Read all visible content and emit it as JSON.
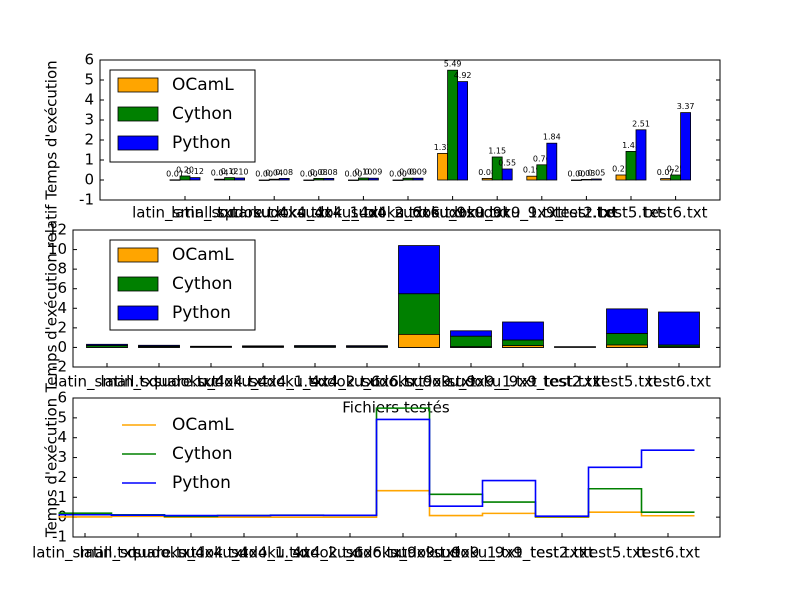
{
  "chart_data": [
    {
      "type": "bar",
      "y_label": "Temps d'exécution",
      "categories": [
        "latin_small.txt",
        "latin_square.txt",
        "sudoku_4x4.txt",
        "sudoku_4x4_1.txt",
        "sudoku_4x4_2.txt",
        "sudoku_6x6.txt",
        "sudoku_9x9.txt",
        "sudoku_9x9_1.txt",
        "sudoku_9x9_test.txt",
        "test2.txt",
        "test5.txt",
        "test6.txt"
      ],
      "series": [
        {
          "name": "OCamL",
          "color": "#ffa500",
          "values": [
            0.01,
            0.04,
            0.0,
            0.0,
            0.0,
            0.0,
            1.33,
            0.08,
            0.19,
            0.0,
            0.25,
            0.07
          ],
          "value_labels": [
            "0.01",
            "0.04",
            "0.00",
            "0.00",
            "0.00",
            "0.00",
            "1.33",
            "0.08",
            "0.19",
            "0.00",
            "0.25",
            "0.07"
          ]
        },
        {
          "name": "Cython",
          "color": "#008000",
          "values": [
            0.2,
            0.12,
            0.04,
            0.08,
            0.1,
            0.09,
            5.49,
            1.15,
            0.76,
            0.03,
            1.43,
            0.25
          ],
          "value_labels": [
            "0.20",
            "0.12",
            "0.04",
            "0.08",
            "0.10",
            "0.09",
            "5.49",
            "1.15",
            "0.76",
            "0.03",
            "1.43",
            "0.25"
          ]
        },
        {
          "name": "Python",
          "color": "#0000ff",
          "values": [
            0.12,
            0.1,
            0.08,
            0.08,
            0.09,
            0.09,
            4.92,
            0.55,
            1.84,
            0.05,
            2.51,
            3.37
          ],
          "value_labels": [
            "0.12",
            "0.10",
            "0.08",
            "0.08",
            "0.09",
            "0.09",
            "4.92",
            "0.55",
            "1.84",
            "0.05",
            "2.51",
            "3.37"
          ]
        }
      ],
      "ylim": [
        -1,
        6
      ],
      "yticks": [
        -1,
        0,
        1,
        2,
        3,
        4,
        5,
        6
      ],
      "legend": "upper left",
      "legend_frame": true
    },
    {
      "type": "stacked_bar",
      "y_label": "Temps d'exécution relatif",
      "x_label": "Fichiers testés",
      "categories": [
        "latin_small.txt",
        "latin_square.txt",
        "sudoku_4x4.txt",
        "sudoku_4x4_1.txt",
        "sudoku_4x4_2.txt",
        "sudoku_6x6.txt",
        "sudoku_9x9.txt",
        "sudoku_9x9_1.txt",
        "sudoku_9x9_test.txt",
        "test2.txt",
        "test5.txt",
        "test6.txt"
      ],
      "series": [
        {
          "name": "OCamL",
          "color": "#ffa500",
          "values": [
            0.01,
            0.04,
            0.0,
            0.0,
            0.0,
            0.0,
            1.33,
            0.08,
            0.19,
            0.0,
            0.25,
            0.07
          ]
        },
        {
          "name": "Cython",
          "color": "#008000",
          "values": [
            0.2,
            0.12,
            0.04,
            0.08,
            0.1,
            0.09,
            5.49,
            1.15,
            0.76,
            0.03,
            1.43,
            0.25
          ]
        },
        {
          "name": "Python",
          "color": "#0000ff",
          "values": [
            0.12,
            0.1,
            0.08,
            0.08,
            0.09,
            0.09,
            4.92,
            0.55,
            1.84,
            0.05,
            2.51,
            3.37
          ]
        }
      ],
      "ylim": [
        -2,
        12
      ],
      "yticks": [
        -2,
        0,
        2,
        4,
        6,
        8,
        10,
        12
      ],
      "legend": "upper left",
      "legend_frame": true
    },
    {
      "type": "line",
      "drawstyle": "steps-mid",
      "y_label": "Temps d'exécution",
      "categories": [
        "latin_small.txt",
        "latin_square.txt",
        "sudoku_4x4.txt",
        "sudoku_4x4_1.txt",
        "sudoku_4x4_2.txt",
        "sudoku_6x6.txt",
        "sudoku_9x9.txt",
        "sudoku_9x9_1.txt",
        "sudoku_9x9_test.txt",
        "test2.txt",
        "test5.txt",
        "test6.txt"
      ],
      "series": [
        {
          "name": "OCamL",
          "color": "#ffa500",
          "values": [
            0.01,
            0.04,
            0.0,
            0.0,
            0.0,
            0.0,
            1.33,
            0.08,
            0.19,
            0.0,
            0.25,
            0.07
          ]
        },
        {
          "name": "Cython",
          "color": "#008000",
          "values": [
            0.2,
            0.12,
            0.04,
            0.08,
            0.1,
            0.09,
            5.49,
            1.15,
            0.76,
            0.03,
            1.43,
            0.25
          ]
        },
        {
          "name": "Python",
          "color": "#0000ff",
          "values": [
            0.12,
            0.1,
            0.08,
            0.08,
            0.09,
            0.09,
            4.92,
            0.55,
            1.84,
            0.05,
            2.51,
            3.37
          ]
        }
      ],
      "ylim": [
        -1,
        6
      ],
      "yticks": [
        -1,
        0,
        1,
        2,
        3,
        4,
        5,
        6
      ],
      "legend": "upper left",
      "legend_frame": false
    }
  ]
}
